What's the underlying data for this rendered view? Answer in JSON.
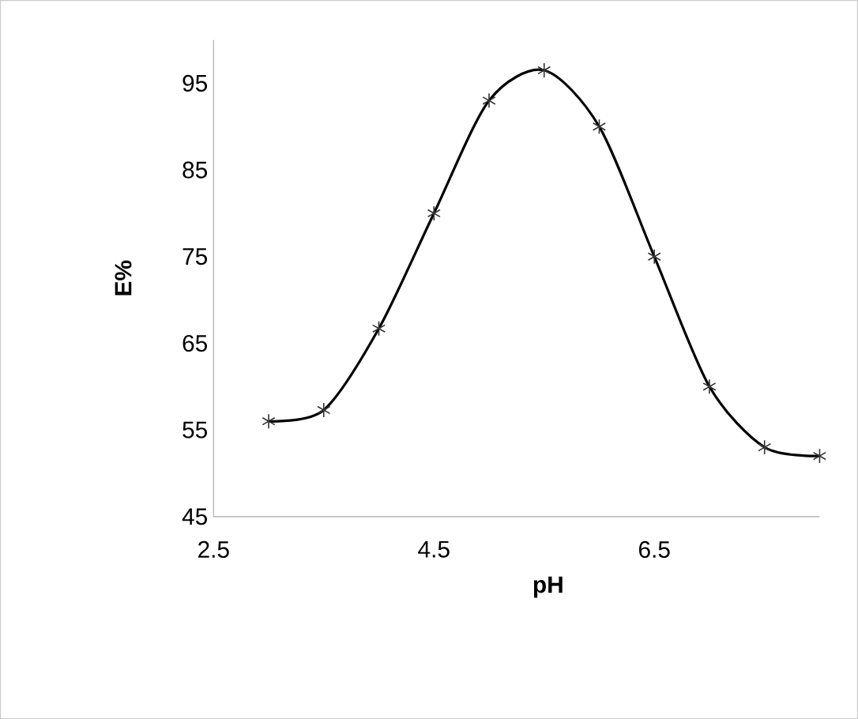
{
  "chart_data": {
    "type": "line",
    "xlabel": "pH",
    "ylabel": "E%",
    "x": [
      3,
      3.5,
      4,
      4.5,
      5,
      5.5,
      6,
      6.5,
      7,
      7.5,
      8
    ],
    "series": [
      {
        "color": "#000000",
        "values": [
          56,
          57.3,
          66.7,
          80,
          93,
          96.5,
          90,
          75,
          60,
          53,
          52
        ]
      }
    ],
    "xlim": [
      2.5,
      8
    ],
    "xticks": [
      2.5,
      4.5,
      6.5
    ],
    "ylim": [
      45,
      100
    ],
    "yticks": [
      45,
      55,
      65,
      75,
      85,
      95
    ],
    "grid": false,
    "marker": "cross",
    "line_style": "solid"
  }
}
